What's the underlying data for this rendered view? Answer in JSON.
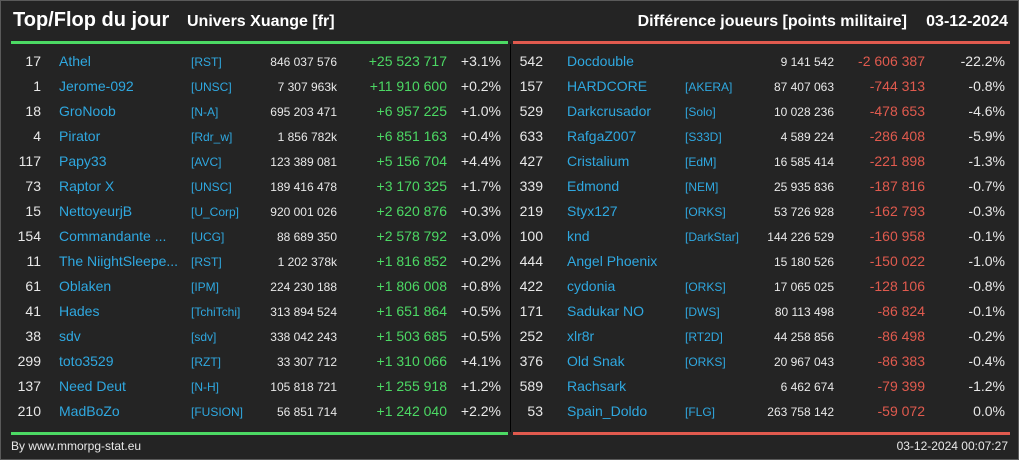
{
  "header": {
    "title": "Top/Flop du jour",
    "subtitle": "Univers Xuange [fr]",
    "diff_label": "Différence joueurs [points militaire]",
    "date": "03-12-2024"
  },
  "colors": {
    "positive": "#4cd964",
    "negative": "#e05a4e",
    "link": "#2fa8e0"
  },
  "top": [
    {
      "rank": "17",
      "name": "Athel",
      "ally": "[RST]",
      "points": "846 037 576",
      "diff": "+25 523 717",
      "pct": "+3.1%"
    },
    {
      "rank": "1",
      "name": "Jerome-092",
      "ally": "[UNSC]",
      "points": "7 307 963k",
      "diff": "+11 910 600",
      "pct": "+0.2%"
    },
    {
      "rank": "18",
      "name": "GroNoob",
      "ally": "[N-A]",
      "points": "695 203 471",
      "diff": "+6 957 225",
      "pct": "+1.0%"
    },
    {
      "rank": "4",
      "name": "Pirator",
      "ally": "[Rdr_w]",
      "points": "1 856 782k",
      "diff": "+6 851 163",
      "pct": "+0.4%"
    },
    {
      "rank": "117",
      "name": "Papy33",
      "ally": "[AVC]",
      "points": "123 389 081",
      "diff": "+5 156 704",
      "pct": "+4.4%"
    },
    {
      "rank": "73",
      "name": "Raptor X",
      "ally": "[UNSC]",
      "points": "189 416 478",
      "diff": "+3 170 325",
      "pct": "+1.7%"
    },
    {
      "rank": "15",
      "name": "NettoyeurjB",
      "ally": "[U_Corp]",
      "points": "920 001 026",
      "diff": "+2 620 876",
      "pct": "+0.3%"
    },
    {
      "rank": "154",
      "name": "Commandante ...",
      "ally": "[UCG]",
      "points": "88 689 350",
      "diff": "+2 578 792",
      "pct": "+3.0%"
    },
    {
      "rank": "11",
      "name": "The NiightSleepe...",
      "ally": "[RST]",
      "points": "1 202 378k",
      "diff": "+1 816 852",
      "pct": "+0.2%"
    },
    {
      "rank": "61",
      "name": "Oblaken",
      "ally": "[IPM]",
      "points": "224 230 188",
      "diff": "+1 806 008",
      "pct": "+0.8%"
    },
    {
      "rank": "41",
      "name": "Hades",
      "ally": "[TchiTchi]",
      "points": "313 894 524",
      "diff": "+1 651 864",
      "pct": "+0.5%"
    },
    {
      "rank": "38",
      "name": "sdv",
      "ally": "[sdv]",
      "points": "338 042 243",
      "diff": "+1 503 685",
      "pct": "+0.5%"
    },
    {
      "rank": "299",
      "name": "toto3529",
      "ally": "[RZT]",
      "points": "33 307 712",
      "diff": "+1 310 066",
      "pct": "+4.1%"
    },
    {
      "rank": "137",
      "name": "Need Deut",
      "ally": "[N-H]",
      "points": "105 818 721",
      "diff": "+1 255 918",
      "pct": "+1.2%"
    },
    {
      "rank": "210",
      "name": "MadBoZo",
      "ally": "[FUSION]",
      "points": "56 851 714",
      "diff": "+1 242 040",
      "pct": "+2.2%"
    }
  ],
  "flop": [
    {
      "rank": "542",
      "name": "Docdouble",
      "ally": "",
      "points": "9 141 542",
      "diff": "-2 606 387",
      "pct": "-22.2%"
    },
    {
      "rank": "157",
      "name": "HARDCORE",
      "ally": "[AKERA]",
      "points": "87 407 063",
      "diff": "-744 313",
      "pct": "-0.8%"
    },
    {
      "rank": "529",
      "name": "Darkcrusador",
      "ally": "[Solo]",
      "points": "10 028 236",
      "diff": "-478 653",
      "pct": "-4.6%"
    },
    {
      "rank": "633",
      "name": "RafgaZ007",
      "ally": "[S33D]",
      "points": "4 589 224",
      "diff": "-286 408",
      "pct": "-5.9%"
    },
    {
      "rank": "427",
      "name": "Cristalium",
      "ally": "[EdM]",
      "points": "16 585 414",
      "diff": "-221 898",
      "pct": "-1.3%"
    },
    {
      "rank": "339",
      "name": "Edmond",
      "ally": "[NEM]",
      "points": "25 935 836",
      "diff": "-187 816",
      "pct": "-0.7%"
    },
    {
      "rank": "219",
      "name": "Styx127",
      "ally": "[ORKS]",
      "points": "53 726 928",
      "diff": "-162 793",
      "pct": "-0.3%"
    },
    {
      "rank": "100",
      "name": "knd",
      "ally": "[DarkStar]",
      "points": "144 226 529",
      "diff": "-160 958",
      "pct": "-0.1%"
    },
    {
      "rank": "444",
      "name": "Angel Phoenix",
      "ally": "",
      "points": "15 180 526",
      "diff": "-150 022",
      "pct": "-1.0%"
    },
    {
      "rank": "422",
      "name": "cydonia",
      "ally": "[ORKS]",
      "points": "17 065 025",
      "diff": "-128 106",
      "pct": "-0.8%"
    },
    {
      "rank": "171",
      "name": "Sadukar NO",
      "ally": "[DWS]",
      "points": "80 113 498",
      "diff": "-86 824",
      "pct": "-0.1%"
    },
    {
      "rank": "252",
      "name": "xlr8r",
      "ally": "[RT2D]",
      "points": "44 258 856",
      "diff": "-86 498",
      "pct": "-0.2%"
    },
    {
      "rank": "376",
      "name": "Old Snak",
      "ally": "[ORKS]",
      "points": "20 967 043",
      "diff": "-86 383",
      "pct": "-0.4%"
    },
    {
      "rank": "589",
      "name": "Rachsark",
      "ally": "",
      "points": "6 462 674",
      "diff": "-79 399",
      "pct": "-1.2%"
    },
    {
      "rank": "53",
      "name": "Spain_Doldo",
      "ally": "[FLG]",
      "points": "263 758 142",
      "diff": "-59 072",
      "pct": "0.0%"
    }
  ],
  "footer": {
    "credit": "By www.mmorpg-stat.eu",
    "timestamp": "03-12-2024 00:07:27"
  }
}
